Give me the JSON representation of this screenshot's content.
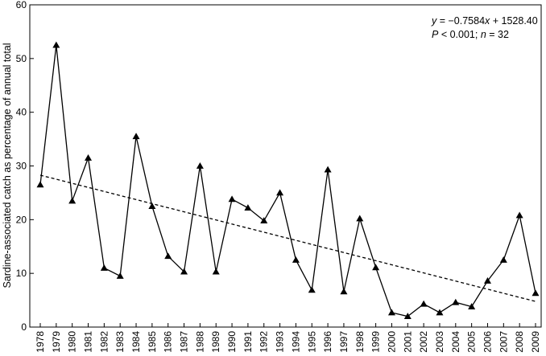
{
  "chart_data": {
    "type": "line",
    "title": "",
    "xlabel": "",
    "ylabel": "Sardine-associated catch as percentage of annual total",
    "ylim": [
      0,
      60
    ],
    "yticks": [
      0,
      10,
      20,
      30,
      40,
      50,
      60
    ],
    "x": [
      1978,
      1979,
      1980,
      1981,
      1982,
      1983,
      1984,
      1985,
      1986,
      1987,
      1988,
      1989,
      1990,
      1991,
      1992,
      1993,
      1994,
      1995,
      1996,
      1997,
      1998,
      1999,
      2000,
      2001,
      2002,
      2003,
      2004,
      2005,
      2006,
      2007,
      2008,
      2009
    ],
    "series": [
      {
        "marker": "triangle",
        "values": [
          26.5,
          52.5,
          23.5,
          31.5,
          11,
          9.5,
          35.5,
          22.5,
          13.2,
          10.3,
          30,
          10.3,
          23.8,
          22.2,
          19.8,
          25,
          12.5,
          6.9,
          29.3,
          6.6,
          20.2,
          11.1,
          2.7,
          2.0,
          4.3,
          2.7,
          4.6,
          3.8,
          8.6,
          12.5,
          20.8,
          6.3
        ]
      }
    ],
    "trendline": {
      "x0": 1978,
      "x1": 2009,
      "slope": -0.7584,
      "intercept": 1528.4,
      "style": "dashed"
    },
    "annotation": {
      "line1_y": "y",
      "line1_eq": " = −0.7584",
      "line1_x": "x",
      "line1_rest": " + 1528.40",
      "line2_p": "P",
      "line2_mid": " < 0.001; ",
      "line2_n": "n",
      "line2_rest": " = 32"
    },
    "grid": false
  }
}
